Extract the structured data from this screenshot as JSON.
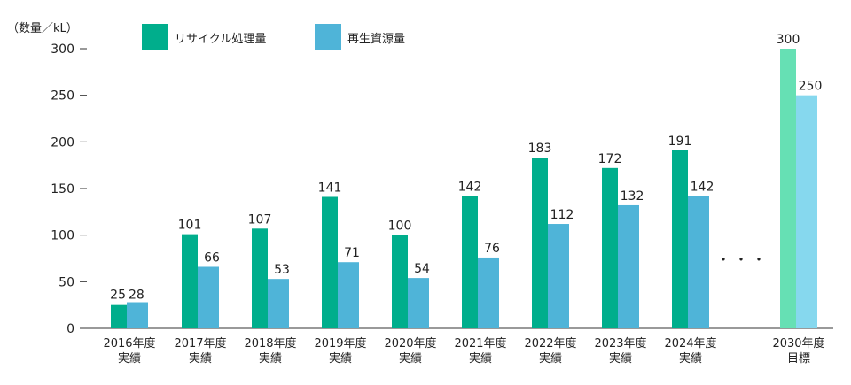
{
  "chart_data": {
    "type": "bar",
    "unit_label": "（数量／kL）",
    "ylim": [
      0,
      300
    ],
    "yticks": [
      0,
      50,
      100,
      150,
      200,
      250,
      300
    ],
    "ellipsis": "・・・",
    "categories": [
      [
        "2016年度",
        "実績"
      ],
      [
        "2017年度",
        "実績"
      ],
      [
        "2018年度",
        "実績"
      ],
      [
        "2019年度",
        "実績"
      ],
      [
        "2020年度",
        "実績"
      ],
      [
        "2021年度",
        "実績"
      ],
      [
        "2022年度",
        "実績"
      ],
      [
        "2023年度",
        "実績"
      ],
      [
        "2024年度",
        "実績"
      ],
      [
        "2030年度",
        "目標"
      ]
    ],
    "series": [
      {
        "name": "リサイクル処理量",
        "values": [
          25,
          101,
          107,
          141,
          100,
          142,
          183,
          172,
          191,
          300
        ],
        "color": "#00ae8c",
        "target_color": "#66e0b4"
      },
      {
        "name": "再生資源量",
        "values": [
          28,
          66,
          53,
          71,
          54,
          76,
          112,
          132,
          142,
          250
        ],
        "color": "#4fb4d8",
        "target_color": "#86d8ee"
      }
    ]
  }
}
